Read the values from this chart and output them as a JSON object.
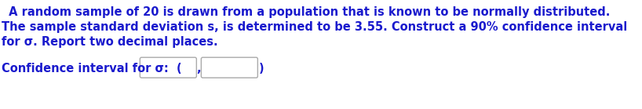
{
  "line1": " A random sample of 20 is drawn from a population that is known to be normally distributed.",
  "line2": "The sample standard deviation s, is determined to be 3.55. Construct a 90% confidence interval",
  "line3": "for σ. Report two decimal places.",
  "line4_prefix": "Confidence interval for σ:  (",
  "line4_comma": ",",
  "line4_suffix": ")",
  "bg_color": "#ffffff",
  "text_color": "#1a1acd",
  "font_size": 10.5,
  "fig_width": 8.18,
  "fig_height": 1.39,
  "dpi": 100
}
